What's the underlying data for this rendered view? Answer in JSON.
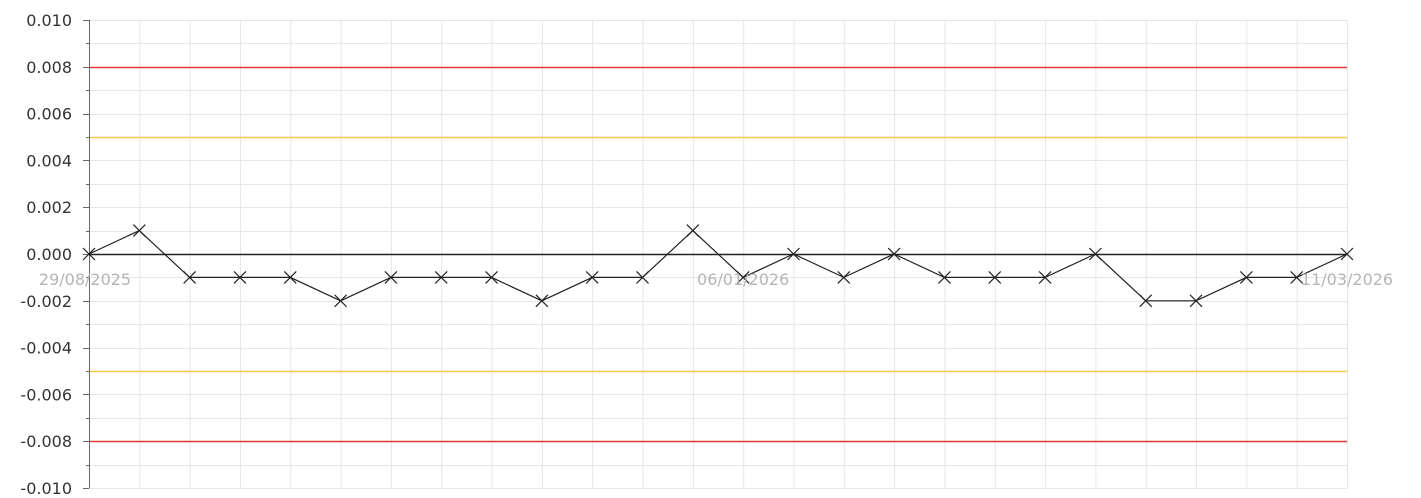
{
  "chart_data": {
    "type": "line",
    "title": "",
    "xlabel": "",
    "ylabel": "",
    "ylim": [
      -0.01,
      0.01
    ],
    "yticks": [
      "0.010",
      "0.008",
      "0.006",
      "0.004",
      "0.002",
      "0.000",
      "-0.002",
      "-0.004",
      "-0.006",
      "-0.008",
      "-0.010"
    ],
    "x_tick_labels": [
      "29/08/2025",
      "06/01/2026",
      "11/03/2026"
    ],
    "grid": true,
    "legend": "none",
    "reference_lines": [
      {
        "value": 0.008,
        "color": "#e53935"
      },
      {
        "value": 0.005,
        "color": "#f9c74f"
      },
      {
        "value": 0.0,
        "color": "#222222"
      },
      {
        "value": -0.005,
        "color": "#f9c74f"
      },
      {
        "value": -0.008,
        "color": "#e53935"
      }
    ],
    "series": [
      {
        "color": "#222222",
        "marker": "x",
        "values": [
          0.0,
          0.001,
          -0.001,
          -0.001,
          -0.001,
          -0.002,
          -0.001,
          -0.001,
          -0.001,
          -0.002,
          -0.001,
          -0.001,
          0.001,
          -0.001,
          0.0,
          -0.001,
          0.0,
          -0.001,
          -0.001,
          -0.001,
          0.0,
          -0.002,
          -0.002,
          -0.001,
          -0.001,
          0.0
        ]
      }
    ]
  }
}
